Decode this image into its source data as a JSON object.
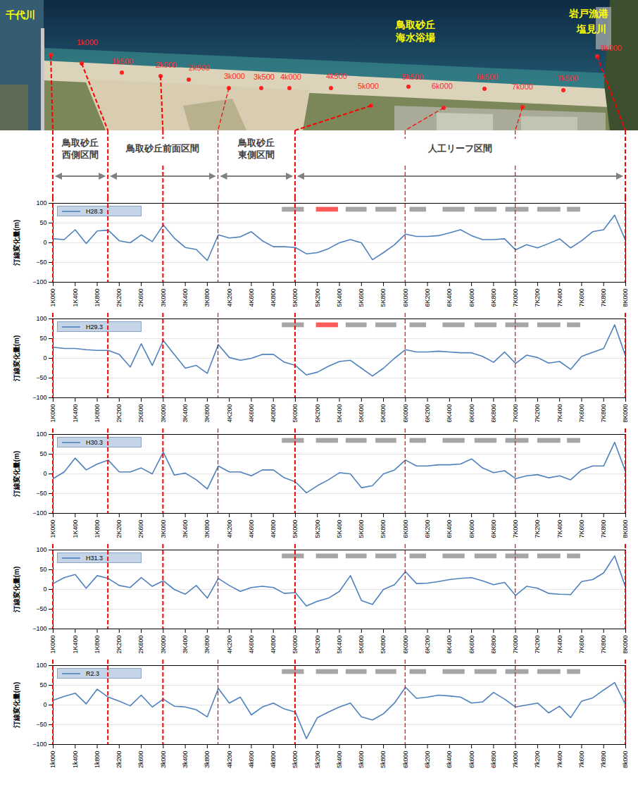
{
  "photo": {
    "labels": [
      "千代川",
      "鳥取砂丘海水浴場",
      "岩戸漁港",
      "塩見川"
    ],
    "km_labels": [
      "1k000",
      "1k500",
      "2k000",
      "2k500",
      "3k000",
      "3k500",
      "4k000",
      "4k500",
      "5k000",
      "5k500",
      "6k000",
      "6k500",
      "7k000",
      "7k500",
      "8k000"
    ]
  },
  "sections": [
    {
      "label": "鳥取砂丘西側区間",
      "from": 0,
      "to": 5
    },
    {
      "label": "鳥取砂丘前面区間",
      "from": 5,
      "to": 15
    },
    {
      "label": "鳥取砂丘東側区間",
      "from": 15,
      "to": 22
    },
    {
      "label": "人工リーフ区間",
      "from": 22,
      "to": 52
    }
  ],
  "chart_data": [
    {
      "type": "line",
      "ylabel": "汀線変化量(m)",
      "categories": [
        "1K000",
        null,
        "1K400",
        null,
        "1K800",
        null,
        "2K200",
        null,
        "2K600",
        null,
        "3K000",
        null,
        "3K400",
        null,
        "3K800",
        null,
        "4K200",
        null,
        "4K600",
        null,
        "4K800",
        null,
        "5K000",
        null,
        "5K200",
        null,
        "5K400",
        null,
        "5K600",
        null,
        "5K800",
        null,
        "6K000",
        null,
        "6K200",
        null,
        "6K400",
        null,
        "6K600",
        null,
        "6K800",
        null,
        "7K000",
        null,
        "7K200",
        null,
        "7K400",
        null,
        "7K600",
        null,
        "7K800",
        null,
        "8K000"
      ],
      "series": [
        {
          "name": "H28.3",
          "color": "#4f81bd",
          "values": [
            10,
            8,
            33,
            -2,
            30,
            32,
            5,
            0,
            20,
            3,
            45,
            12,
            -12,
            -17,
            -45,
            20,
            12,
            15,
            28,
            5,
            -10,
            -10,
            -12,
            -28,
            -25,
            -15,
            0,
            8,
            0,
            -43,
            -25,
            -5,
            22,
            16,
            16,
            18,
            25,
            33,
            18,
            8,
            8,
            10,
            -18,
            -5,
            -13,
            -2,
            10,
            -13,
            5,
            28,
            33,
            70,
            5
          ]
        }
      ],
      "ylim": [
        -100,
        100
      ],
      "yticks": [
        -100,
        -50,
        0,
        50,
        100
      ],
      "grid": true,
      "legend": "top-left",
      "reefs": [
        {
          "from": 20.8,
          "to": 22.8,
          "color": "#a6a6a6"
        },
        {
          "from": 23.9,
          "to": 25.9,
          "color": "#ff5b5b"
        },
        {
          "from": 26.6,
          "to": 28.5,
          "color": "#a6a6a6"
        },
        {
          "from": 29.3,
          "to": 31.2,
          "color": "#a6a6a6"
        },
        {
          "from": 32.4,
          "to": 33.9,
          "color": "#a6a6a6"
        },
        {
          "from": 35.4,
          "to": 37.4,
          "color": "#a6a6a6"
        },
        {
          "from": 38.3,
          "to": 40.3,
          "color": "#a6a6a6"
        },
        {
          "from": 41.1,
          "to": 43.2,
          "color": "#a6a6a6"
        },
        {
          "from": 44,
          "to": 46.1,
          "color": "#a6a6a6"
        },
        {
          "from": 46.7,
          "to": 47.9,
          "color": "#a6a6a6"
        }
      ]
    },
    {
      "type": "line",
      "ylabel": "汀線変化量(m)",
      "categories": [
        "1K000",
        null,
        "1K400",
        null,
        "1K800",
        null,
        "2K200",
        null,
        "2K600",
        null,
        "3K000",
        null,
        "3K400",
        null,
        "3K800",
        null,
        "4K200",
        null,
        "4K600",
        null,
        "4K800",
        null,
        "5K000",
        null,
        "5K200",
        null,
        "5K400",
        null,
        "5K600",
        null,
        "5K800",
        null,
        "6K000",
        null,
        "6K200",
        null,
        "6K400",
        null,
        "6K600",
        null,
        "6K800",
        null,
        "7K000",
        null,
        "7K200",
        null,
        "7K400",
        null,
        "7K600",
        null,
        "7K800",
        null,
        "8K000"
      ],
      "series": [
        {
          "name": "H29.3",
          "color": "#4f81bd",
          "values": [
            28,
            25,
            25,
            22,
            20,
            20,
            10,
            -22,
            37,
            -18,
            45,
            10,
            -25,
            -18,
            -38,
            35,
            2,
            -5,
            0,
            10,
            10,
            -10,
            -18,
            -42,
            -35,
            -20,
            -8,
            -5,
            -25,
            -45,
            -25,
            0,
            22,
            16,
            16,
            18,
            16,
            14,
            14,
            5,
            -10,
            16,
            -13,
            8,
            2,
            -12,
            -8,
            -28,
            5,
            15,
            25,
            85,
            5
          ]
        }
      ],
      "ylim": [
        -100,
        100
      ],
      "yticks": [
        -100,
        -50,
        0,
        50,
        100
      ],
      "grid": true,
      "legend": "top-left",
      "reefs": [
        {
          "from": 20.8,
          "to": 22.8,
          "color": "#a6a6a6"
        },
        {
          "from": 23.9,
          "to": 25.9,
          "color": "#ff5b5b"
        },
        {
          "from": 26.6,
          "to": 28.5,
          "color": "#a6a6a6"
        },
        {
          "from": 29.3,
          "to": 31.2,
          "color": "#a6a6a6"
        },
        {
          "from": 32.4,
          "to": 33.9,
          "color": "#a6a6a6"
        },
        {
          "from": 35.4,
          "to": 37.4,
          "color": "#a6a6a6"
        },
        {
          "from": 38.3,
          "to": 40.3,
          "color": "#a6a6a6"
        },
        {
          "from": 41.1,
          "to": 43.2,
          "color": "#a6a6a6"
        },
        {
          "from": 44,
          "to": 46.1,
          "color": "#a6a6a6"
        },
        {
          "from": 46.7,
          "to": 47.9,
          "color": "#a6a6a6"
        }
      ]
    },
    {
      "type": "line",
      "ylabel": "汀線変化量(m)",
      "categories": [
        "1K000",
        null,
        "1K400",
        null,
        "1K800",
        null,
        "2K200",
        null,
        "2K600",
        null,
        "3K000",
        null,
        "3K400",
        null,
        "3K800",
        null,
        "4K200",
        null,
        "4K600",
        null,
        "4K800",
        null,
        "5K000",
        null,
        "5K200",
        null,
        "5K400",
        null,
        "5K600",
        null,
        "5K800",
        null,
        "6K000",
        null,
        "6K200",
        null,
        "6K400",
        null,
        "6K600",
        null,
        "6K800",
        null,
        "7K000",
        null,
        "7K200",
        null,
        "7K400",
        null,
        "7K600",
        null,
        "7K800",
        null,
        "8K000"
      ],
      "series": [
        {
          "name": "H30.3",
          "color": "#4f81bd",
          "values": [
            -12,
            5,
            40,
            10,
            25,
            35,
            5,
            5,
            15,
            0,
            55,
            -3,
            2,
            -15,
            -38,
            20,
            5,
            5,
            -5,
            10,
            10,
            -10,
            -20,
            -48,
            -30,
            -15,
            3,
            0,
            -35,
            -30,
            0,
            10,
            35,
            20,
            20,
            23,
            23,
            25,
            38,
            15,
            3,
            8,
            -12,
            -5,
            -2,
            -10,
            -5,
            -15,
            10,
            20,
            20,
            80,
            5
          ]
        }
      ],
      "ylim": [
        -100,
        100
      ],
      "yticks": [
        -100,
        -50,
        0,
        50,
        100
      ],
      "grid": true,
      "legend": "top-left",
      "reefs": [
        {
          "from": 20.8,
          "to": 22.8,
          "color": "#a6a6a6"
        },
        {
          "from": 23.9,
          "to": 25.9,
          "color": "#a6a6a6"
        },
        {
          "from": 26.6,
          "to": 28.5,
          "color": "#a6a6a6"
        },
        {
          "from": 29.3,
          "to": 31.2,
          "color": "#a6a6a6"
        },
        {
          "from": 32.4,
          "to": 33.9,
          "color": "#a6a6a6"
        },
        {
          "from": 35.4,
          "to": 37.4,
          "color": "#a6a6a6"
        },
        {
          "from": 38.3,
          "to": 40.3,
          "color": "#a6a6a6"
        },
        {
          "from": 41.1,
          "to": 43.2,
          "color": "#a6a6a6"
        },
        {
          "from": 44,
          "to": 46.1,
          "color": "#a6a6a6"
        },
        {
          "from": 46.7,
          "to": 47.9,
          "color": "#a6a6a6"
        }
      ]
    },
    {
      "type": "line",
      "ylabel": "汀線変化量(m)",
      "categories": [
        "1K000",
        null,
        "1K400",
        null,
        "1K800",
        null,
        "2K200",
        null,
        "2K600",
        null,
        "3K000",
        null,
        "3K400",
        null,
        "3K800",
        null,
        "4K200",
        null,
        "4K600",
        null,
        "4K800",
        null,
        "5K000",
        null,
        "5K200",
        null,
        "5K400",
        null,
        "5K600",
        null,
        "5K800",
        null,
        "6K000",
        null,
        "6K200",
        null,
        "6K400",
        null,
        "6K600",
        null,
        "6K800",
        null,
        "7K000",
        null,
        "7K200",
        null,
        "7K400",
        null,
        "7K600",
        null,
        "7K800",
        null,
        "8K000"
      ],
      "series": [
        {
          "name": "H31.3",
          "color": "#4f81bd",
          "values": [
            15,
            30,
            38,
            3,
            35,
            28,
            10,
            5,
            30,
            8,
            22,
            0,
            -12,
            10,
            -22,
            28,
            10,
            -5,
            5,
            8,
            5,
            -10,
            -8,
            -42,
            -30,
            -22,
            -5,
            35,
            -28,
            -38,
            0,
            12,
            45,
            15,
            16,
            20,
            25,
            28,
            30,
            22,
            12,
            18,
            -15,
            8,
            3,
            -10,
            -12,
            -13,
            20,
            25,
            42,
            85,
            5
          ]
        }
      ],
      "ylim": [
        -100,
        100
      ],
      "yticks": [
        -100,
        -50,
        0,
        50,
        100
      ],
      "grid": true,
      "legend": "top-left",
      "reefs": [
        {
          "from": 20.8,
          "to": 22.8,
          "color": "#a6a6a6"
        },
        {
          "from": 23.9,
          "to": 25.9,
          "color": "#a6a6a6"
        },
        {
          "from": 26.6,
          "to": 28.5,
          "color": "#a6a6a6"
        },
        {
          "from": 29.3,
          "to": 31.2,
          "color": "#a6a6a6"
        },
        {
          "from": 32.4,
          "to": 33.9,
          "color": "#a6a6a6"
        },
        {
          "from": 35.4,
          "to": 37.4,
          "color": "#a6a6a6"
        },
        {
          "from": 38.3,
          "to": 40.3,
          "color": "#a6a6a6"
        },
        {
          "from": 41.1,
          "to": 43.2,
          "color": "#a6a6a6"
        },
        {
          "from": 44,
          "to": 46.1,
          "color": "#a6a6a6"
        },
        {
          "from": 46.7,
          "to": 47.9,
          "color": "#a6a6a6"
        }
      ]
    },
    {
      "type": "line",
      "ylabel": "汀線変化量(m)",
      "categories": [
        "1k000",
        null,
        "1k400",
        null,
        "1k800",
        null,
        "2k200",
        null,
        "2k600",
        null,
        "3k000",
        null,
        "3k400",
        null,
        "3k800",
        null,
        "4k200",
        null,
        "4k600",
        null,
        "4k800",
        null,
        "5k000",
        null,
        "5k200",
        null,
        "5k400",
        null,
        "5k600",
        null,
        "5k800",
        null,
        "6k000",
        null,
        "6k200",
        null,
        "6k400",
        null,
        "6k600",
        null,
        "6k800",
        null,
        "7k000",
        null,
        "7k200",
        null,
        "7k400",
        null,
        "7k600",
        null,
        "7k800",
        null,
        "8k000"
      ],
      "series": [
        {
          "name": "R2.3",
          "color": "#4f81bd",
          "values": [
            12,
            22,
            30,
            3,
            40,
            20,
            10,
            -2,
            25,
            -5,
            15,
            -3,
            -5,
            -12,
            -30,
            42,
            5,
            20,
            -25,
            -5,
            5,
            -10,
            -18,
            -85,
            -32,
            -18,
            -5,
            5,
            -30,
            -38,
            -22,
            5,
            45,
            17,
            20,
            25,
            23,
            20,
            5,
            8,
            32,
            15,
            -5,
            0,
            5,
            -20,
            -3,
            -32,
            10,
            18,
            38,
            57,
            0
          ]
        }
      ],
      "ylim": [
        -100,
        100
      ],
      "yticks": [
        -100,
        -50,
        0,
        50,
        100
      ],
      "grid": true,
      "legend": "top-left",
      "reefs": [
        {
          "from": 20.8,
          "to": 22.8,
          "color": "#a6a6a6"
        },
        {
          "from": 23.9,
          "to": 25.9,
          "color": "#a6a6a6"
        },
        {
          "from": 26.6,
          "to": 28.5,
          "color": "#a6a6a6"
        },
        {
          "from": 29.3,
          "to": 31.2,
          "color": "#a6a6a6"
        },
        {
          "from": 32.4,
          "to": 33.9,
          "color": "#a6a6a6"
        },
        {
          "from": 35.4,
          "to": 37.4,
          "color": "#a6a6a6"
        },
        {
          "from": 38.3,
          "to": 40.3,
          "color": "#a6a6a6"
        },
        {
          "from": 41.1,
          "to": 43.2,
          "color": "#a6a6a6"
        },
        {
          "from": 44,
          "to": 46.1,
          "color": "#a6a6a6"
        },
        {
          "from": 46.7,
          "to": 47.9,
          "color": "#a6a6a6"
        }
      ]
    }
  ]
}
